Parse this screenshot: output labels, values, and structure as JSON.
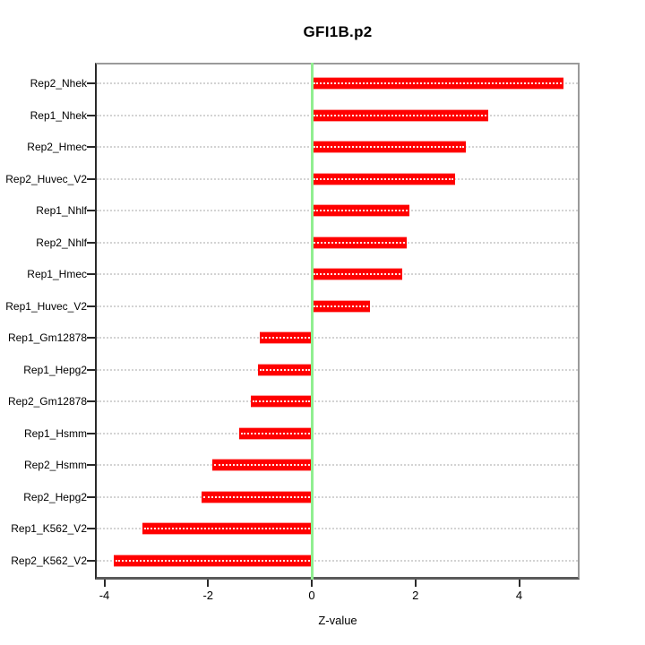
{
  "title": "GFI1B.p2",
  "xlabel": "Z-value",
  "chart_data": {
    "type": "bar",
    "orientation": "horizontal",
    "title": "GFI1B.p2",
    "xlabel": "Z-value",
    "ylabel": "",
    "categories": [
      "Rep2_Nhek",
      "Rep1_Nhek",
      "Rep2_Hmec",
      "Rep2_Huvec_V2",
      "Rep1_Nhlf",
      "Rep2_Nhlf",
      "Rep1_Hmec",
      "Rep1_Huvec_V2",
      "Rep1_Gm12878",
      "Rep1_Hepg2",
      "Rep2_Gm12878",
      "Rep1_Hsmm",
      "Rep2_Hsmm",
      "Rep2_Hepg2",
      "Rep1_K562_V2",
      "Rep2_K562_V2"
    ],
    "values": [
      4.85,
      3.4,
      2.98,
      2.76,
      1.88,
      1.84,
      1.74,
      1.13,
      -1.0,
      -1.03,
      -1.18,
      -1.4,
      -1.92,
      -2.13,
      -3.26,
      -3.82
    ],
    "xticks": [
      -4,
      -2,
      0,
      2,
      4
    ],
    "xlim": [
      -4.18,
      5.18
    ],
    "grid": "dotted-row-lines",
    "legend": "none",
    "colors": {
      "bar": "#ff0000",
      "bar_center_dots": "#ffffff",
      "zero_line": "#90ee90",
      "row_grid": "#d3d3d3",
      "axis": "#555555",
      "text": "#000000",
      "background": "#ffffff"
    }
  }
}
